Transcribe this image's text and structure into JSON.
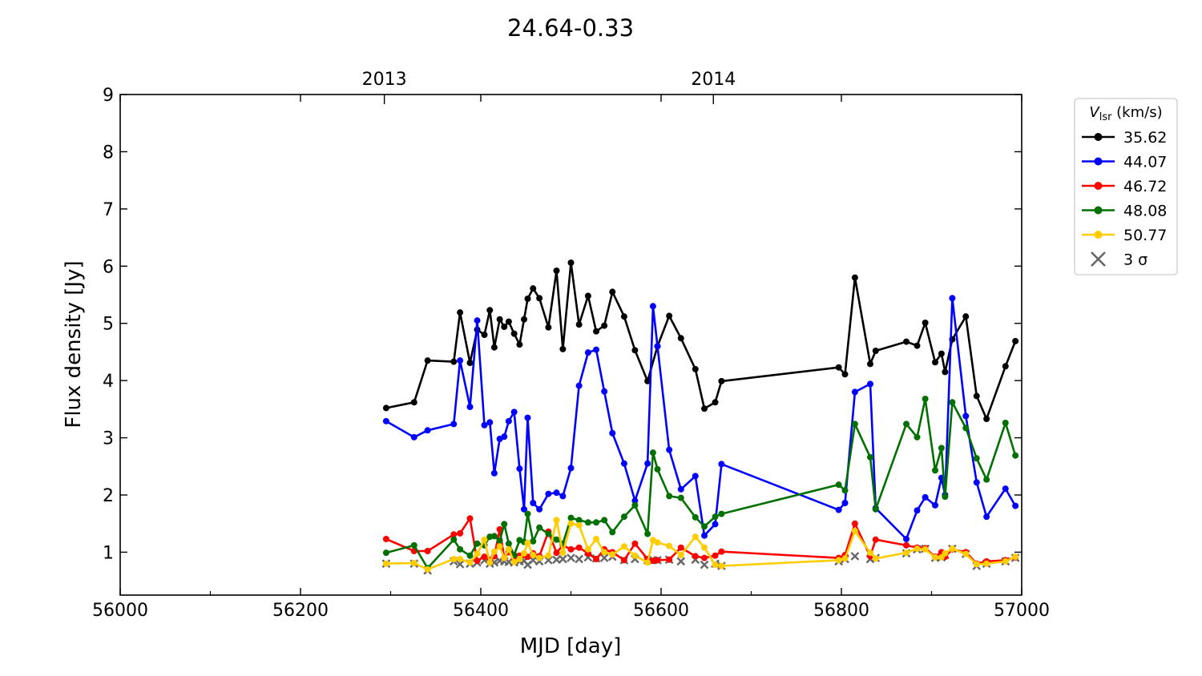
{
  "chart_data": {
    "type": "line",
    "title": "24.64-0.33",
    "xlabel": "MJD [day]",
    "ylabel": "Flux density [Jy]",
    "xlim": [
      56000,
      57000
    ],
    "ylim": [
      0.25,
      9
    ],
    "xticks": [
      56000,
      56200,
      56400,
      56600,
      56800,
      57000
    ],
    "yticks": [
      1,
      2,
      3,
      4,
      5,
      6,
      7,
      8,
      9
    ],
    "top_axis_ticks": [
      {
        "label": "2013",
        "mjd": 56293
      },
      {
        "label": "2014",
        "mjd": 56658
      }
    ],
    "grid": false,
    "legend": {
      "position": "outside-right-top",
      "title_main": "V",
      "title_sub": "lsr",
      "title_unit": " (km/s)",
      "entries": [
        "35.62",
        "44.07",
        "46.72",
        "48.08",
        "50.77",
        "3 σ"
      ]
    },
    "series": [
      {
        "name": "35.62",
        "color": "#000000",
        "x": [
          56295,
          56326,
          56341,
          56370,
          56377,
          56388,
          56396,
          56404,
          56410,
          56415,
          56421,
          56426,
          56431,
          56437,
          56443,
          56448,
          56452,
          56458,
          56465,
          56475,
          56484,
          56491,
          56500,
          56509,
          56519,
          56528,
          56537,
          56546,
          56559,
          56571,
          56585,
          56596,
          56609,
          56622,
          56638,
          56648,
          56660,
          56667,
          56797,
          56804,
          56815,
          56832,
          56838,
          56872,
          56884,
          56893,
          56904,
          56911,
          56915,
          56923,
          56938,
          56950,
          56961,
          56982,
          56993
        ],
        "y": [
          3.52,
          3.62,
          4.35,
          4.33,
          5.19,
          4.31,
          4.89,
          4.8,
          5.23,
          4.58,
          5.07,
          4.94,
          5.03,
          4.82,
          4.63,
          5.07,
          5.43,
          5.61,
          5.44,
          4.93,
          5.92,
          4.55,
          6.06,
          4.98,
          5.48,
          4.86,
          4.96,
          5.55,
          5.12,
          4.53,
          3.99,
          4.6,
          5.13,
          4.74,
          4.2,
          3.51,
          3.62,
          3.99,
          4.23,
          4.11,
          5.8,
          4.29,
          4.52,
          4.68,
          4.61,
          5.01,
          4.32,
          4.47,
          4.15,
          4.72,
          5.12,
          3.73,
          3.33,
          4.25,
          4.69
        ]
      },
      {
        "name": "44.07",
        "color": "#0000ff",
        "x": [
          56295,
          56326,
          56341,
          56370,
          56377,
          56388,
          56396,
          56404,
          56410,
          56415,
          56421,
          56426,
          56431,
          56437,
          56443,
          56448,
          56452,
          56458,
          56465,
          56475,
          56484,
          56491,
          56500,
          56509,
          56519,
          56528,
          56537,
          56546,
          56559,
          56571,
          56585,
          56591,
          56596,
          56609,
          56622,
          56638,
          56648,
          56660,
          56667,
          56797,
          56804,
          56815,
          56832,
          56838,
          56872,
          56884,
          56893,
          56904,
          56911,
          56915,
          56923,
          56938,
          56950,
          56961,
          56982,
          56993
        ],
        "y": [
          3.29,
          3.01,
          3.13,
          3.24,
          4.35,
          3.54,
          5.05,
          3.22,
          3.27,
          2.38,
          2.98,
          3.02,
          3.29,
          3.45,
          2.46,
          1.75,
          3.35,
          1.86,
          1.75,
          2.02,
          2.04,
          1.98,
          2.47,
          3.91,
          4.49,
          4.54,
          3.81,
          3.08,
          2.55,
          1.9,
          2.55,
          5.3,
          4.6,
          2.79,
          2.1,
          2.33,
          1.29,
          1.49,
          2.54,
          1.74,
          1.86,
          3.8,
          3.94,
          1.77,
          1.23,
          1.73,
          1.96,
          1.82,
          2.3,
          2.0,
          5.44,
          3.38,
          2.22,
          1.62,
          2.11,
          1.81
        ]
      },
      {
        "name": "46.72",
        "color": "#ff0000",
        "x": [
          56295,
          56326,
          56341,
          56370,
          56377,
          56388,
          56396,
          56404,
          56410,
          56415,
          56421,
          56426,
          56431,
          56437,
          56443,
          56448,
          56452,
          56458,
          56465,
          56475,
          56484,
          56491,
          56500,
          56509,
          56519,
          56528,
          56537,
          56546,
          56559,
          56571,
          56585,
          56591,
          56596,
          56609,
          56622,
          56638,
          56648,
          56660,
          56667,
          56797,
          56804,
          56815,
          56832,
          56838,
          56872,
          56884,
          56893,
          56904,
          56911,
          56915,
          56923,
          56938,
          56950,
          56961,
          56982,
          56993
        ],
        "y": [
          1.23,
          1.02,
          1.02,
          1.31,
          1.33,
          1.59,
          0.85,
          0.92,
          0.87,
          0.93,
          1.4,
          0.9,
          1.0,
          0.88,
          0.94,
          0.95,
          0.92,
          0.98,
          0.93,
          1.36,
          0.99,
          1.12,
          1.05,
          1.08,
          0.98,
          0.88,
          1.05,
          1.0,
          0.86,
          1.15,
          0.88,
          0.85,
          0.86,
          0.87,
          1.08,
          0.93,
          0.9,
          0.94,
          1.01,
          0.9,
          0.95,
          1.5,
          0.93,
          1.22,
          1.12,
          1.08,
          1.07,
          0.92,
          1.0,
          0.92,
          1.05,
          1.0,
          0.8,
          0.84,
          0.86,
          0.91
        ]
      },
      {
        "name": "48.08",
        "color": "#007000",
        "x": [
          56295,
          56326,
          56341,
          56370,
          56377,
          56388,
          56396,
          56404,
          56410,
          56415,
          56421,
          56426,
          56431,
          56437,
          56443,
          56448,
          56452,
          56458,
          56465,
          56475,
          56484,
          56491,
          56500,
          56509,
          56519,
          56528,
          56537,
          56546,
          56559,
          56571,
          56585,
          56591,
          56596,
          56609,
          56622,
          56638,
          56648,
          56660,
          56667,
          56797,
          56804,
          56815,
          56832,
          56838,
          56872,
          56884,
          56893,
          56904,
          56911,
          56915,
          56923,
          56938,
          56950,
          56961,
          56982,
          56993
        ],
        "y": [
          0.99,
          1.12,
          0.72,
          1.22,
          1.05,
          0.94,
          1.15,
          1.12,
          1.27,
          1.28,
          1.2,
          1.49,
          1.15,
          0.95,
          1.21,
          1.18,
          1.67,
          1.19,
          1.43,
          1.32,
          1.22,
          1.15,
          1.6,
          1.56,
          1.52,
          1.52,
          1.56,
          1.35,
          1.62,
          1.82,
          1.32,
          2.74,
          2.45,
          1.98,
          1.95,
          1.61,
          1.45,
          1.62,
          1.67,
          2.18,
          2.08,
          3.24,
          2.66,
          1.75,
          3.24,
          3.01,
          3.68,
          2.43,
          2.82,
          1.97,
          3.62,
          3.17,
          2.64,
          2.27,
          3.26,
          2.69
        ]
      },
      {
        "name": "50.77",
        "color": "#ffcc00",
        "x": [
          56295,
          56326,
          56341,
          56370,
          56377,
          56388,
          56396,
          56404,
          56410,
          56415,
          56421,
          56426,
          56431,
          56437,
          56443,
          56448,
          56452,
          56458,
          56465,
          56475,
          56484,
          56491,
          56500,
          56509,
          56519,
          56528,
          56537,
          56546,
          56559,
          56571,
          56585,
          56591,
          56596,
          56609,
          56622,
          56638,
          56648,
          56660,
          56667,
          56797,
          56804,
          56815,
          56832,
          56838,
          56872,
          56884,
          56893,
          56904,
          56911,
          56915,
          56923,
          56938,
          56950,
          56961,
          56982,
          56993
        ],
        "y": [
          0.8,
          0.81,
          0.7,
          0.88,
          0.88,
          0.82,
          0.97,
          1.22,
          0.82,
          1.01,
          1.1,
          0.9,
          1.05,
          0.83,
          0.88,
          0.98,
          1.16,
          0.95,
          0.9,
          0.94,
          1.56,
          0.99,
          1.5,
          1.47,
          1.05,
          1.23,
          1.0,
          0.96,
          1.1,
          0.94,
          0.82,
          1.21,
          1.17,
          1.11,
          0.95,
          1.27,
          1.08,
          0.78,
          0.76,
          0.86,
          0.89,
          1.37,
          0.99,
          0.89,
          0.99,
          1.06,
          1.05,
          0.91,
          0.91,
          0.98,
          1.06,
          0.97,
          0.79,
          0.8,
          0.84,
          0.92
        ]
      },
      {
        "name": "3 σ",
        "color": "#666666",
        "marker": "x",
        "x": [
          56295,
          56326,
          56341,
          56370,
          56377,
          56388,
          56396,
          56404,
          56410,
          56415,
          56421,
          56426,
          56431,
          56437,
          56443,
          56448,
          56452,
          56458,
          56465,
          56475,
          56484,
          56491,
          56500,
          56509,
          56519,
          56528,
          56537,
          56546,
          56559,
          56571,
          56585,
          56591,
          56596,
          56609,
          56622,
          56638,
          56648,
          56660,
          56667,
          56797,
          56804,
          56815,
          56832,
          56838,
          56872,
          56884,
          56893,
          56904,
          56911,
          56915,
          56923,
          56938,
          56950,
          56961,
          56982,
          56993
        ],
        "y": [
          0.8,
          0.8,
          0.68,
          0.84,
          0.79,
          0.8,
          0.82,
          0.86,
          0.8,
          0.82,
          0.85,
          0.84,
          0.83,
          0.82,
          0.84,
          0.85,
          0.78,
          0.86,
          0.84,
          0.86,
          0.87,
          0.88,
          0.9,
          0.88,
          0.91,
          0.89,
          0.9,
          0.92,
          0.86,
          0.88,
          0.86,
          0.86,
          0.86,
          0.87,
          0.84,
          0.87,
          0.78,
          0.8,
          0.76,
          0.84,
          0.88,
          0.93,
          0.88,
          0.9,
          0.98,
          1.05,
          1.06,
          0.9,
          0.91,
          0.95,
          1.06,
          0.97,
          0.76,
          0.8,
          0.84,
          0.9
        ]
      }
    ]
  }
}
